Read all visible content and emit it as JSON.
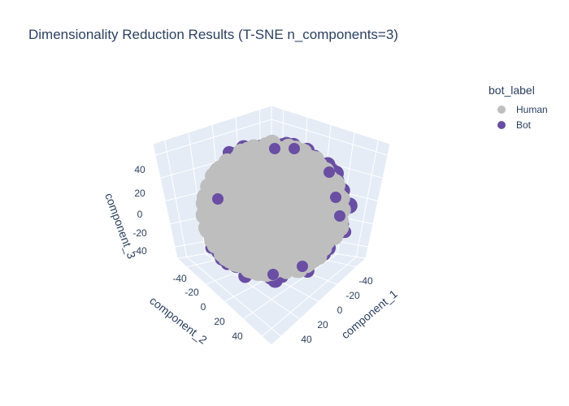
{
  "chart_data": {
    "type": "scatter",
    "title": "Dimensionality Reduction Results (T-SNE n_components=3)",
    "legend": {
      "title": "bot_label",
      "placement": "top-right",
      "items": [
        {
          "name": "Human",
          "color": "#bebebe"
        },
        {
          "name": "Bot",
          "color": "#6a4ea3"
        }
      ]
    },
    "axes": {
      "x": {
        "label": "component_1",
        "ticks": [
          "-40",
          "-20",
          "0",
          "20",
          "40"
        ],
        "range": [
          -50,
          50
        ]
      },
      "y": {
        "label": "component_2",
        "ticks": [
          "-40",
          "-20",
          "0",
          "20",
          "40"
        ],
        "range": [
          -50,
          50
        ]
      },
      "z": {
        "label": "component_3",
        "ticks": [
          "-40",
          "-20",
          "0",
          "20",
          "40"
        ],
        "range": [
          -50,
          50
        ]
      }
    },
    "grid": true,
    "series": [
      {
        "name": "Human",
        "color": "#bebebe"
      },
      {
        "name": "Bot",
        "color": "#6a4ea3"
      }
    ]
  }
}
